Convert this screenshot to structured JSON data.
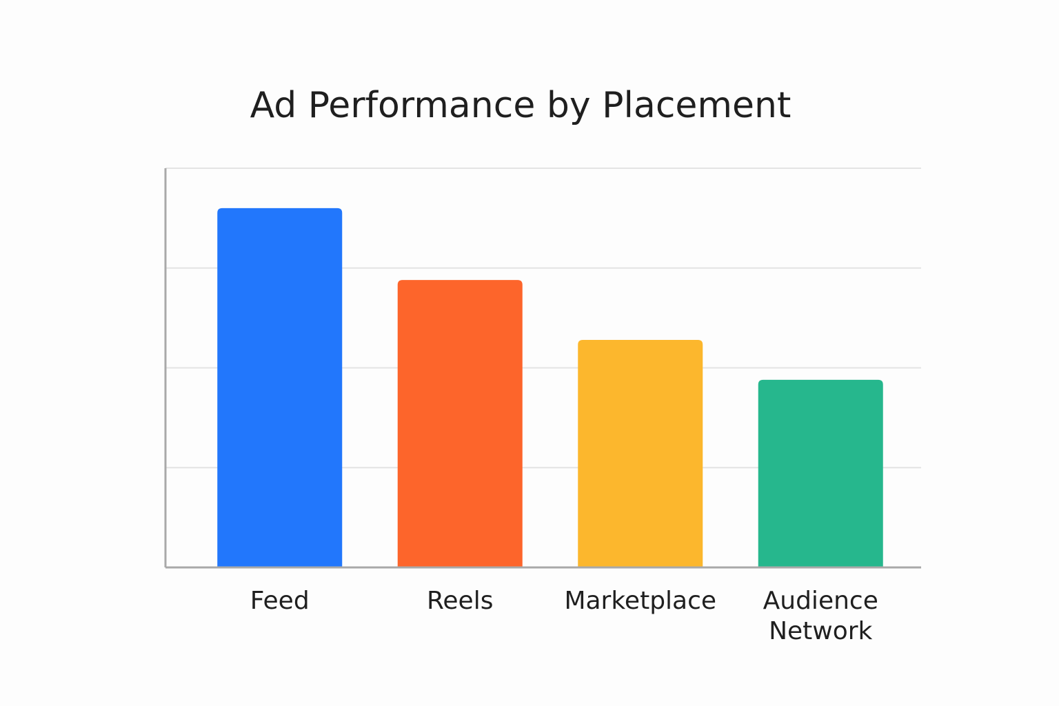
{
  "chart_data": {
    "type": "bar",
    "title": "Ad Performance by Placement",
    "xlabel": "",
    "ylabel": "",
    "categories": [
      "Feed",
      "Reels",
      "Marketplace",
      "Audience Network"
    ],
    "values": [
      90,
      72,
      57,
      47
    ],
    "ylim": [
      0,
      100
    ],
    "ytick_count": 4,
    "grid": true,
    "y_tick_labels_shown": false,
    "legend": "none",
    "colors": [
      "#2277fc",
      "#fd652b",
      "#fcb72d",
      "#26b78d"
    ]
  }
}
